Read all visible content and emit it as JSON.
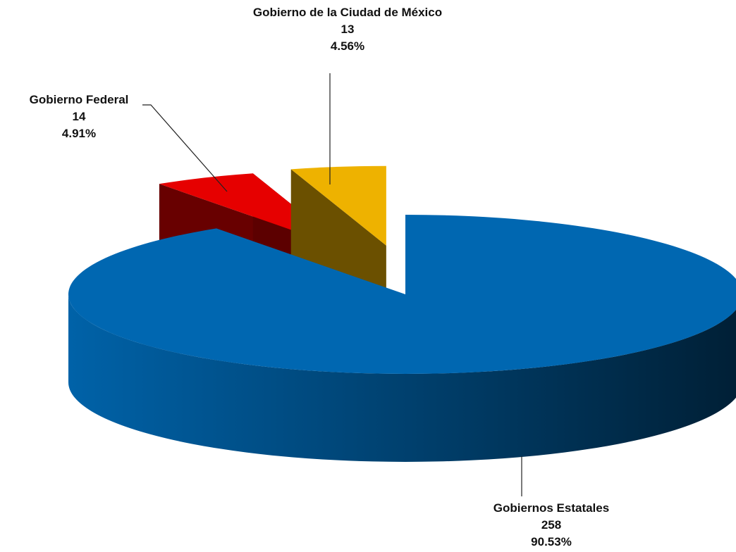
{
  "chart_data": {
    "type": "pie",
    "categories": [
      "Gobiernos Estatales",
      "Gobierno Federal",
      "Gobierno de la Ciudad de México"
    ],
    "values": [
      258,
      14,
      13
    ],
    "percents": [
      90.53,
      4.91,
      4.56
    ],
    "percent_labels": [
      "90.53%",
      "4.91%",
      "4.56%"
    ],
    "colors": [
      "#0067b1",
      "#e60000",
      "#eeb200"
    ]
  }
}
